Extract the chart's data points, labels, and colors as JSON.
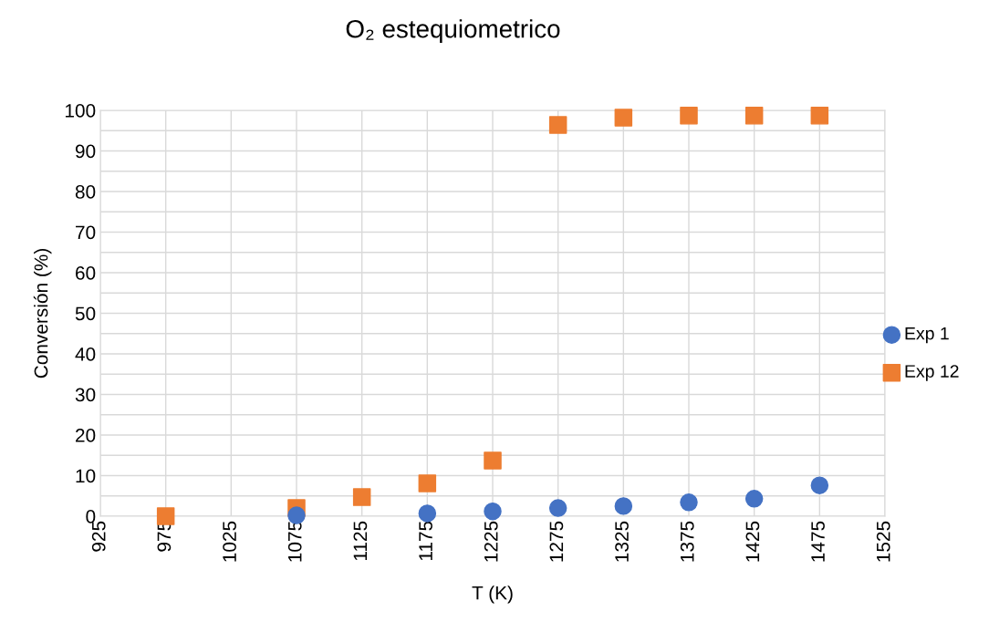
{
  "chart_data": {
    "type": "scatter",
    "title": "O₂ estequiometrico",
    "xlabel": "T (K)",
    "ylabel": "Conversión (%)",
    "xlim": [
      925,
      1525
    ],
    "xticks": [
      925,
      975,
      1025,
      1075,
      1125,
      1175,
      1225,
      1275,
      1325,
      1375,
      1425,
      1475,
      1525
    ],
    "ylim": [
      0,
      100
    ],
    "yticks": [
      0,
      {
        "value": 5,
        "label": null
      },
      10,
      {
        "value": 15,
        "label": null
      },
      20,
      {
        "value": 25,
        "label": null
      },
      30,
      {
        "value": 35,
        "label": null
      },
      40,
      {
        "value": 45,
        "label": null
      },
      50,
      {
        "value": 55,
        "label": null
      },
      60,
      {
        "value": 65,
        "label": null
      },
      70,
      {
        "value": 75,
        "label": null
      },
      80,
      {
        "value": 85,
        "label": null
      },
      90,
      {
        "value": 95,
        "label": null
      },
      100
    ],
    "grid": true,
    "legend": "right",
    "series": [
      {
        "name": "Exp 1",
        "color": "#4472c4",
        "marker": "circle",
        "x": [
          1075,
          1175,
          1225,
          1275,
          1325,
          1375,
          1425,
          1475
        ],
        "values": [
          0.2,
          0.7,
          1.2,
          2.0,
          2.5,
          3.4,
          4.3,
          7.6
        ]
      },
      {
        "name": "Exp 12",
        "color": "#ed7d31",
        "marker": "square",
        "x": [
          975,
          1075,
          1125,
          1175,
          1225,
          1275,
          1325,
          1375,
          1425,
          1475
        ],
        "values": [
          0,
          2.0,
          4.7,
          8.1,
          13.7,
          96.4,
          98.2,
          98.7,
          98.7,
          98.7
        ]
      }
    ]
  }
}
